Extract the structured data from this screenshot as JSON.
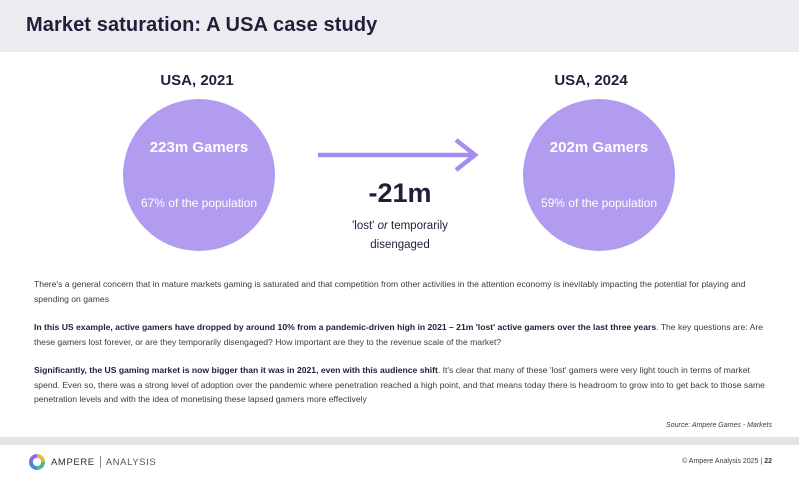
{
  "header": {
    "title": "Market saturation: A USA case study"
  },
  "left": {
    "year": "USA, 2021",
    "gamers": "223m Gamers",
    "population": "67% of the population"
  },
  "right": {
    "year": "USA, 2024",
    "gamers": "202m Gamers",
    "population": "59% of the population"
  },
  "change": {
    "value": "-21m",
    "caption_lost": "'lost'",
    "caption_or": "or",
    "caption_rest": "temporarily",
    "caption_line2": "disengaged"
  },
  "colors": {
    "circle": "#b19cf0",
    "arrow": "#a58cf0",
    "title_bar": "#ececf0"
  },
  "body": {
    "p1": "There's a general concern that in mature markets gaming is saturated and that competition from other activities in the attention economy is inevitably impacting the potential for playing and spending on games",
    "p2_bold": "In this US example, active gamers have dropped by around 10% from a pandemic-driven high in 2021 – 21m 'lost' active gamers over the last three years",
    "p2_rest": ". The key questions are: Are these gamers lost forever, or are they temporarily disengaged? How important are they to the revenue scale of the market?",
    "p3_bold": "Significantly, the US gaming market is now bigger than it was in 2021, even with this audience shift",
    "p3_rest": ". It's clear that many of these 'lost' gamers were very light touch in terms of market spend. Even so, there was a strong level of adoption over the pandemic where penetration reached a high point, and that means today there is headroom to grow into to get back to those same penetration levels and with the idea of monetising these lapsed gamers more effectively"
  },
  "source": "Source: Ampere Games - Markets",
  "footer": {
    "logo_primary": "AMPERE",
    "logo_secondary": "ANALYSIS",
    "copyright": "© Ampere Analysis 2025",
    "separator": "|",
    "page": "22"
  }
}
